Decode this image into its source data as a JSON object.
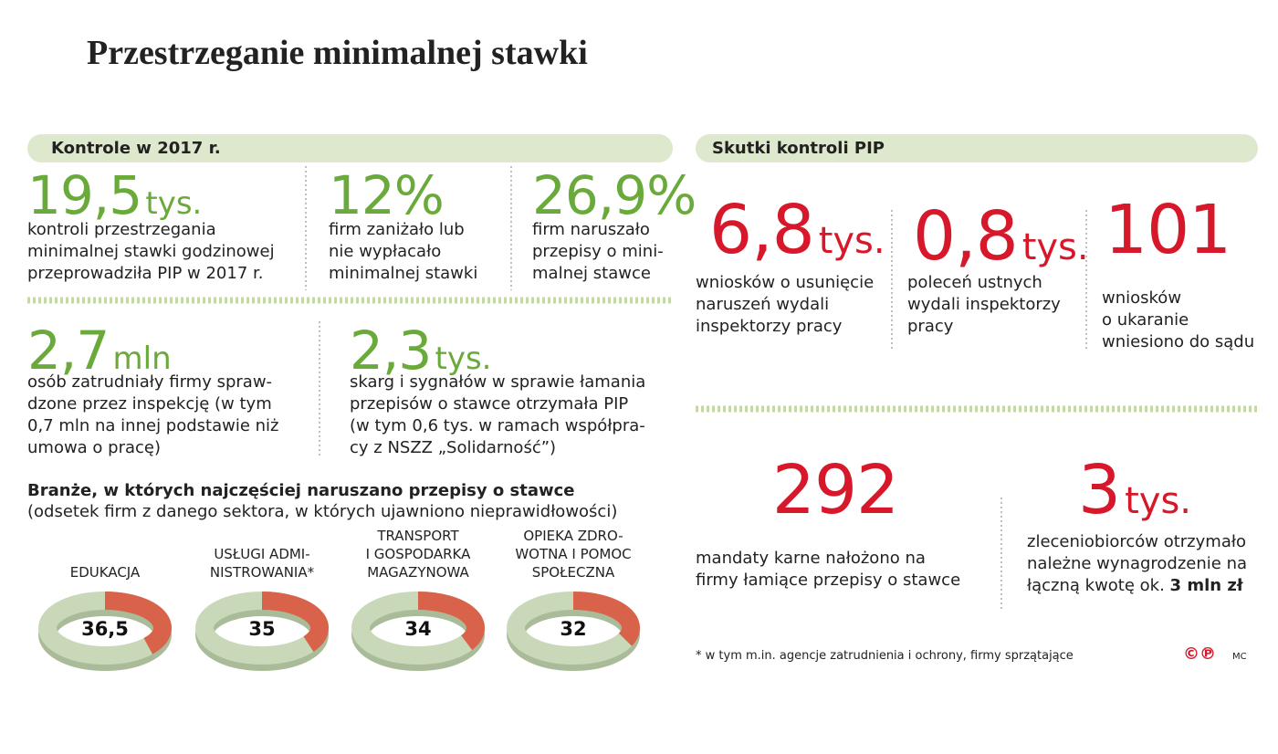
{
  "title": "Przestrzeganie minimalnej stawki",
  "kontrole": {
    "header": "Kontrole w 2017 r.",
    "stats": [
      {
        "value": "19,5",
        "unit": "tys.",
        "text": "kontroli przestrzegania\nminimalnej stawki godzinowej\nprzeprowadziła PIP w 2017 r."
      },
      {
        "value": "12%",
        "text": "firm zaniżało lub\nnie wypłacało\nminimalnej stawki"
      },
      {
        "value": "26,9%",
        "text": "firm naruszało\nprzepisy o mini-\nmalnej stawce"
      },
      {
        "value": "2,7",
        "unit": "mln",
        "text": "osób zatrudniały firmy spraw-\ndzone przez inspekcję (w tym\n0,7 mln na innej podstawie niż\numowa o pracę)"
      },
      {
        "value": "2,3",
        "unit": "tys.",
        "text": "skarg i sygnałów w sprawie łamania\nprzepisów o stawce otrzymała PIP\n(w tym 0,6 tys. w ramach współpra-\ncy z NSZZ „Solidarność”)"
      }
    ]
  },
  "skutki": {
    "header": "Skutki kontroli PIP",
    "stats": [
      {
        "value": "6,8",
        "unit": "tys.",
        "text": "wniosków o usunięcie\nnaruszeń wydali\ninspektorzy pracy"
      },
      {
        "value": "0,8",
        "unit": "tys.",
        "text": "poleceń ustnych\nwydali inspektorzy\npracy"
      },
      {
        "value": "101",
        "text": "wniosków\no ukaranie\nwniesiono do sądu"
      },
      {
        "value": "292",
        "text": "mandaty karne nałożono na\nfirmy łamiące przepisy o stawce"
      },
      {
        "value": "3",
        "unit": "tys.",
        "text": "zleceniobiorców otrzymało\nnależne wynagrodzenie na\nłączną kwotę ok. ",
        "bold": "3 mln zł"
      }
    ]
  },
  "chart_data": {
    "type": "donut",
    "title": "Branże, w których najczęściej naruszano przepisy o stawce",
    "subtitle": "(odsetek firm z danego sektora, w których ujawniono nieprawidłowości)",
    "categories": [
      "EDUKACJA",
      "USŁUGI ADMI-\nNISTROWANIA*",
      "TRANSPORT\nI GOSPODARKA\nMAGAZYNOWA",
      "OPIEKA ZDRO-\nWOTNA I POMOC\nSPOŁECZNA"
    ],
    "values": [
      36.5,
      35,
      34,
      32
    ],
    "value_labels": [
      "36,5",
      "35",
      "34",
      "32"
    ],
    "color": "#d9634a",
    "track_color": "#c8d8b8"
  },
  "footnote": "* w tym m.in. agencje zatrudnienia i ochrony, firmy sprzątające",
  "logo": "©℗",
  "credit": "MC"
}
